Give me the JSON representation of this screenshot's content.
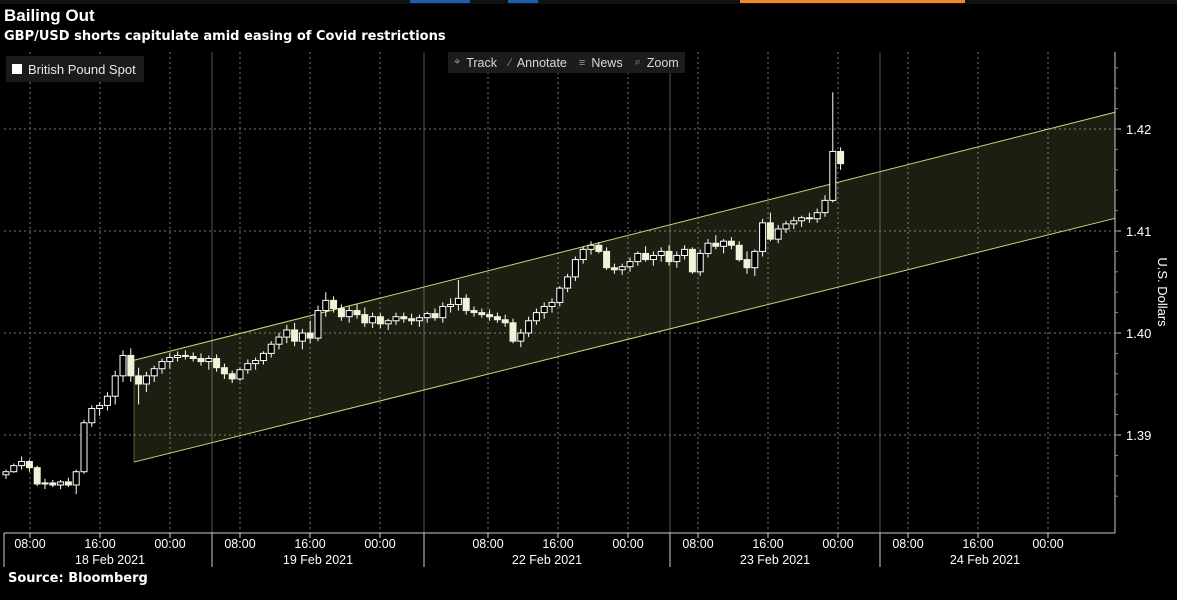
{
  "header": {
    "title": "Bailing Out",
    "subtitle": "GBP/USD shorts capitulate amid easing of Covid restrictions"
  },
  "legend": {
    "label": "British Pound Spot",
    "swatch_color": "#ffffff"
  },
  "toolbar": {
    "track": "Track",
    "annotate": "Annotate",
    "news": "News",
    "zoom": "Zoom",
    "icons": [
      "crosshair-icon",
      "pencil-icon",
      "list-icon",
      "magnifier-icon"
    ]
  },
  "footer": {
    "source": "Source: Bloomberg"
  },
  "chart_data": {
    "type": "candlestick",
    "ylabel": "U.S. Dollars",
    "y_ticks": [
      "1.39",
      "1.40",
      "1.41",
      "1.42"
    ],
    "ylim": [
      1.38,
      1.428
    ],
    "x_tick_labels": [
      "08:00",
      "16:00",
      "00:00",
      "08:00",
      "16:00",
      "00:00",
      "08:00",
      "16:00",
      "00:00",
      "08:00",
      "16:00",
      "00:00",
      "08:00",
      "16:00",
      "00:00"
    ],
    "date_labels": [
      "18 Feb 2021",
      "19 Feb 2021",
      "22 Feb 2021",
      "23 Feb 2021",
      "24 Feb 2021"
    ],
    "grid": true,
    "channel": {
      "color": "#c8d878",
      "upper": [
        [
          23,
          1.3986
        ],
        [
          143,
          1.4218
        ]
      ],
      "lower": [
        [
          23,
          1.3886
        ],
        [
          143,
          1.4114
        ]
      ]
    },
    "ohlc": [
      [
        1.3861,
        1.3866,
        1.3857,
        1.3864
      ],
      [
        1.3864,
        1.3872,
        1.3863,
        1.387
      ],
      [
        1.387,
        1.3879,
        1.3866,
        1.3874
      ],
      [
        1.3874,
        1.3876,
        1.3864,
        1.3868
      ],
      [
        1.3868,
        1.387,
        1.385,
        1.3852
      ],
      [
        1.3852,
        1.3857,
        1.3847,
        1.3853
      ],
      [
        1.3853,
        1.3856,
        1.3849,
        1.3851
      ],
      [
        1.3851,
        1.3856,
        1.3847,
        1.3854
      ],
      [
        1.3854,
        1.3858,
        1.3849,
        1.3851
      ],
      [
        1.3851,
        1.3866,
        1.3842,
        1.3864
      ],
      [
        1.3864,
        1.3915,
        1.3862,
        1.3912
      ],
      [
        1.3912,
        1.3929,
        1.3908,
        1.3926
      ],
      [
        1.3926,
        1.3932,
        1.3919,
        1.3929
      ],
      [
        1.3929,
        1.3942,
        1.3924,
        1.3938
      ],
      [
        1.3938,
        1.3963,
        1.393,
        1.3958
      ],
      [
        1.3958,
        1.3983,
        1.3952,
        1.3978
      ],
      [
        1.3978,
        1.3985,
        1.3952,
        1.3958
      ],
      [
        1.3958,
        1.3966,
        1.393,
        1.395
      ],
      [
        1.395,
        1.3962,
        1.3942,
        1.3958
      ],
      [
        1.3958,
        1.3968,
        1.3952,
        1.3965
      ],
      [
        1.3965,
        1.3975,
        1.396,
        1.3972
      ],
      [
        1.3972,
        1.398,
        1.3965,
        1.3976
      ],
      [
        1.3976,
        1.3982,
        1.3972,
        1.3978
      ],
      [
        1.3978,
        1.3983,
        1.3974,
        1.3977
      ],
      [
        1.3977,
        1.3981,
        1.3972,
        1.3975
      ],
      [
        1.3975,
        1.398,
        1.3968,
        1.3972
      ],
      [
        1.3972,
        1.3978,
        1.3964,
        1.3975
      ],
      [
        1.3975,
        1.3979,
        1.3962,
        1.3966
      ],
      [
        1.3966,
        1.397,
        1.3955,
        1.396
      ],
      [
        1.396,
        1.3963,
        1.3951,
        1.3955
      ],
      [
        1.3955,
        1.3966,
        1.3953,
        1.3964
      ],
      [
        1.3964,
        1.3974,
        1.396,
        1.397
      ],
      [
        1.397,
        1.3976,
        1.3964,
        1.3973
      ],
      [
        1.3973,
        1.3982,
        1.3969,
        1.398
      ],
      [
        1.398,
        1.3992,
        1.3976,
        1.3989
      ],
      [
        1.3989,
        1.4,
        1.3984,
        1.3996
      ],
      [
        1.3996,
        1.4008,
        1.399,
        1.4003
      ],
      [
        1.4003,
        1.401,
        1.3987,
        1.3992
      ],
      [
        1.3992,
        1.4004,
        1.3984,
        1.4
      ],
      [
        1.4,
        1.4012,
        1.399,
        1.3995
      ],
      [
        1.3995,
        1.4027,
        1.3992,
        1.4022
      ],
      [
        1.4022,
        1.404,
        1.4016,
        1.4032
      ],
      [
        1.4032,
        1.4036,
        1.402,
        1.4024
      ],
      [
        1.4024,
        1.4028,
        1.4012,
        1.4016
      ],
      [
        1.4016,
        1.4026,
        1.401,
        1.4022
      ],
      [
        1.4022,
        1.4028,
        1.4014,
        1.4018
      ],
      [
        1.4018,
        1.4025,
        1.4006,
        1.401
      ],
      [
        1.401,
        1.402,
        1.4005,
        1.4016
      ],
      [
        1.4016,
        1.4019,
        1.4005,
        1.4009
      ],
      [
        1.4009,
        1.4014,
        1.4003,
        1.4012
      ],
      [
        1.4012,
        1.402,
        1.4008,
        1.4016
      ],
      [
        1.4016,
        1.402,
        1.401,
        1.4014
      ],
      [
        1.4014,
        1.4019,
        1.4008,
        1.4012
      ],
      [
        1.4012,
        1.4018,
        1.4006,
        1.4015
      ],
      [
        1.4015,
        1.4021,
        1.401,
        1.4019
      ],
      [
        1.4019,
        1.4024,
        1.4012,
        1.4015
      ],
      [
        1.4015,
        1.403,
        1.401,
        1.4026
      ],
      [
        1.4026,
        1.4034,
        1.402,
        1.4028
      ],
      [
        1.4028,
        1.4052,
        1.4022,
        1.4034
      ],
      [
        1.4034,
        1.4038,
        1.4018,
        1.4022
      ],
      [
        1.4022,
        1.4026,
        1.4016,
        1.402
      ],
      [
        1.402,
        1.4024,
        1.4015,
        1.4018
      ],
      [
        1.4018,
        1.4023,
        1.4012,
        1.4016
      ],
      [
        1.4016,
        1.402,
        1.401,
        1.4013
      ],
      [
        1.4013,
        1.4018,
        1.4006,
        1.401
      ],
      [
        1.401,
        1.4014,
        1.399,
        1.3992
      ],
      [
        1.3992,
        1.4004,
        1.3986,
        1.4
      ],
      [
        1.4,
        1.4016,
        1.3996,
        1.4012
      ],
      [
        1.4012,
        1.4024,
        1.4008,
        1.402
      ],
      [
        1.402,
        1.403,
        1.4014,
        1.4026
      ],
      [
        1.4026,
        1.4034,
        1.402,
        1.403
      ],
      [
        1.403,
        1.4046,
        1.4026,
        1.4044
      ],
      [
        1.4044,
        1.4058,
        1.404,
        1.4055
      ],
      [
        1.4055,
        1.4075,
        1.4051,
        1.4072
      ],
      [
        1.4072,
        1.4085,
        1.4068,
        1.4082
      ],
      [
        1.4082,
        1.409,
        1.4077,
        1.4086
      ],
      [
        1.4086,
        1.4089,
        1.4078,
        1.408
      ],
      [
        1.408,
        1.4084,
        1.4062,
        1.4064
      ],
      [
        1.4064,
        1.4068,
        1.4058,
        1.4062
      ],
      [
        1.4062,
        1.4068,
        1.4057,
        1.4065
      ],
      [
        1.4065,
        1.4074,
        1.406,
        1.407
      ],
      [
        1.407,
        1.408,
        1.4066,
        1.4078
      ],
      [
        1.4078,
        1.4085,
        1.407,
        1.4072
      ],
      [
        1.4072,
        1.408,
        1.4066,
        1.4076
      ],
      [
        1.4076,
        1.4084,
        1.407,
        1.408
      ],
      [
        1.408,
        1.4086,
        1.4066,
        1.407
      ],
      [
        1.407,
        1.408,
        1.4064,
        1.4076
      ],
      [
        1.4076,
        1.4086,
        1.4072,
        1.4082
      ],
      [
        1.4082,
        1.4084,
        1.4058,
        1.406
      ],
      [
        1.406,
        1.4082,
        1.4056,
        1.4078
      ],
      [
        1.4078,
        1.4092,
        1.4074,
        1.4088
      ],
      [
        1.4088,
        1.4096,
        1.4082,
        1.4085
      ],
      [
        1.4085,
        1.4092,
        1.4078,
        1.409
      ],
      [
        1.409,
        1.4094,
        1.4082,
        1.4086
      ],
      [
        1.4086,
        1.409,
        1.407,
        1.4072
      ],
      [
        1.4072,
        1.408,
        1.4058,
        1.4064
      ],
      [
        1.4064,
        1.4082,
        1.4056,
        1.408
      ],
      [
        1.408,
        1.4112,
        1.4075,
        1.4108
      ],
      [
        1.4108,
        1.4118,
        1.409,
        1.4092
      ],
      [
        1.4092,
        1.4106,
        1.4088,
        1.4102
      ],
      [
        1.4102,
        1.411,
        1.4098,
        1.4107
      ],
      [
        1.4107,
        1.4114,
        1.4102,
        1.411
      ],
      [
        1.411,
        1.4115,
        1.4104,
        1.4113
      ],
      [
        1.4113,
        1.4118,
        1.4108,
        1.4112
      ],
      [
        1.4112,
        1.4122,
        1.4108,
        1.4118
      ],
      [
        1.4118,
        1.4135,
        1.4114,
        1.413
      ],
      [
        1.413,
        1.4236,
        1.4128,
        1.4178
      ],
      [
        1.4178,
        1.4182,
        1.416,
        1.4166
      ]
    ]
  }
}
